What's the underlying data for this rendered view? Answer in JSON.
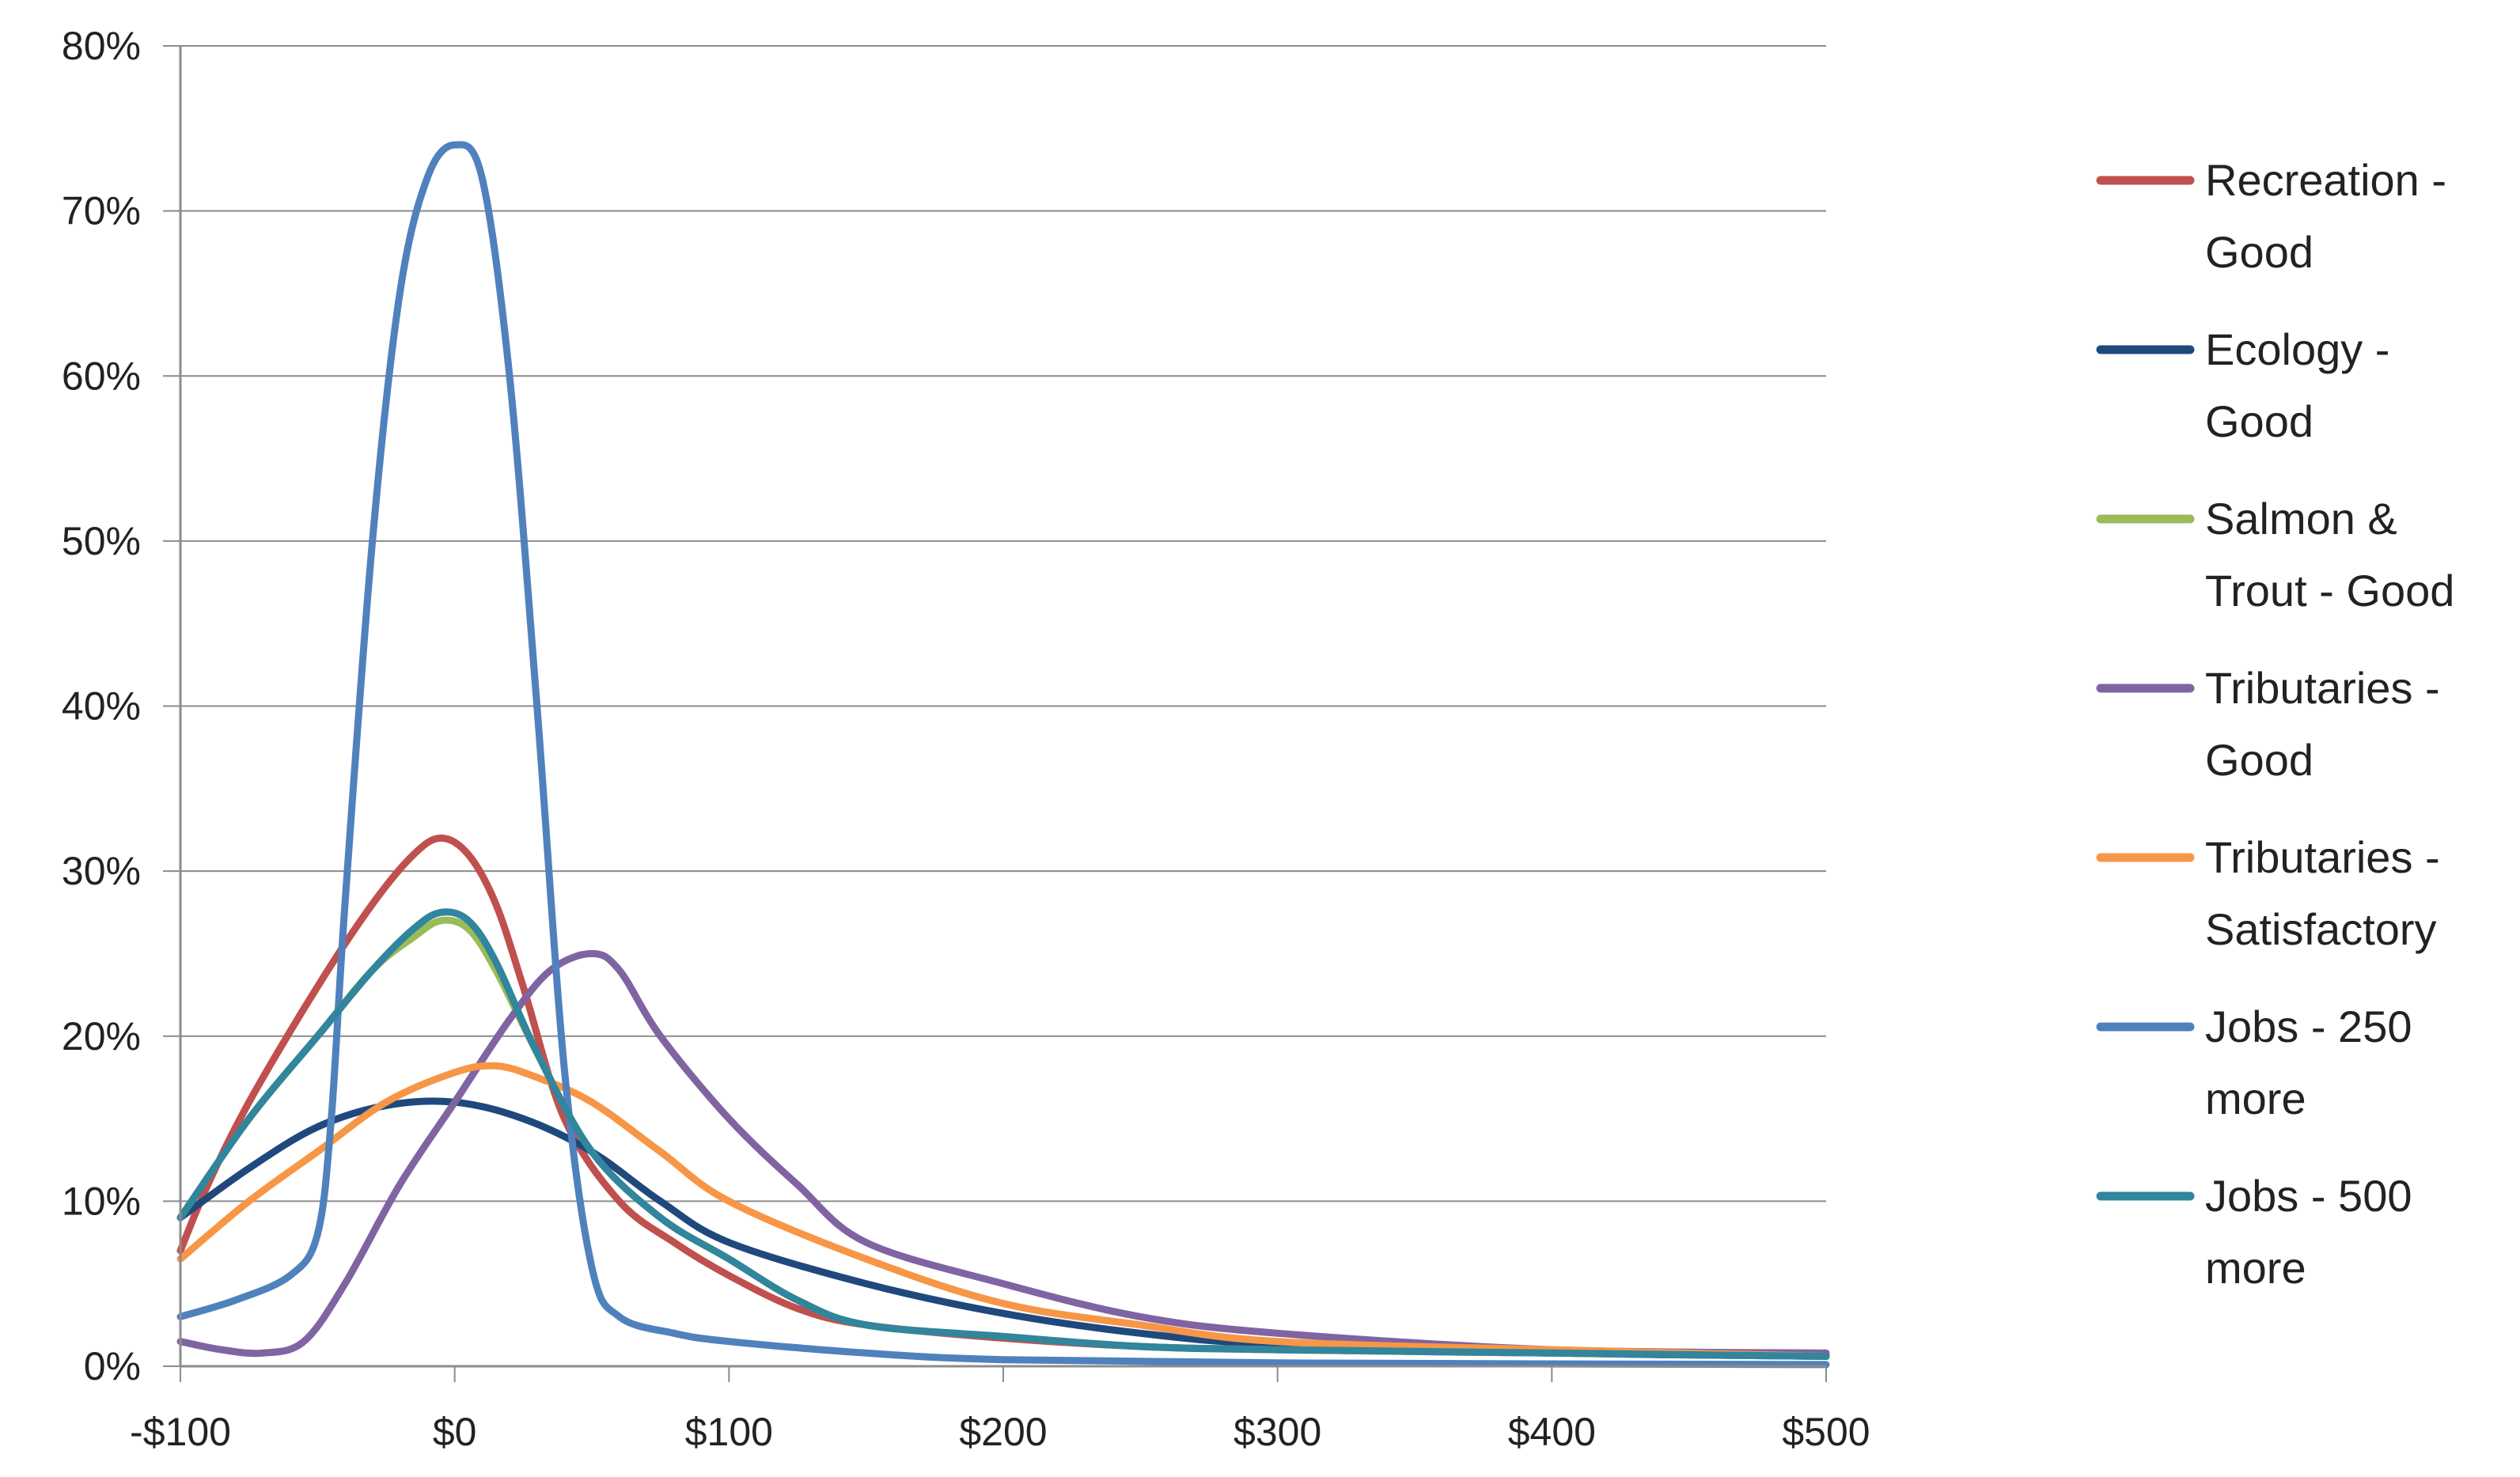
{
  "chart_data": {
    "type": "line",
    "title": "",
    "xlabel": "",
    "ylabel": "",
    "xlim": [
      -100,
      500
    ],
    "ylim": [
      0,
      80
    ],
    "x_ticks": [
      "-$100",
      "$0",
      "$100",
      "$200",
      "$300",
      "$400",
      "$500"
    ],
    "y_ticks": [
      "0%",
      "10%",
      "20%",
      "30%",
      "40%",
      "50%",
      "60%",
      "70%",
      "80%"
    ],
    "grid": "horizontal",
    "legend_position": "right",
    "series": [
      {
        "name": "Recreation - Good",
        "color": "#C0504D",
        "x": [
          -100,
          -90,
          -75,
          -50,
          -30,
          -15,
          -5,
          5,
          15,
          25,
          40,
          60,
          80,
          100,
          125,
          150,
          200,
          250,
          300,
          400,
          500
        ],
        "y": [
          7,
          11,
          16,
          23,
          28,
          31,
          32,
          31,
          28,
          23,
          15,
          10,
          7.5,
          5.5,
          3.5,
          2.5,
          1.7,
          1.2,
          1.0,
          0.8,
          0.7
        ]
      },
      {
        "name": "Ecology - Good",
        "color": "#1F497D",
        "x": [
          -100,
          -75,
          -50,
          -25,
          0,
          25,
          50,
          75,
          100,
          150,
          200,
          250,
          300,
          400,
          500
        ],
        "y": [
          9,
          12,
          14.5,
          15.8,
          16,
          15,
          13,
          10,
          7.5,
          5,
          3.2,
          2.0,
          1.3,
          0.8,
          0.6
        ]
      },
      {
        "name": "Salmon & Trout - Good",
        "color": "#9BBB59",
        "x": [
          -100,
          -75,
          -50,
          -30,
          -15,
          -5,
          5,
          15,
          30,
          50,
          75,
          100,
          125,
          150,
          200,
          250,
          300,
          400,
          500
        ],
        "y": [
          9,
          15,
          20,
          24,
          26,
          27,
          26.5,
          24,
          19,
          13,
          9,
          6.5,
          4,
          2.5,
          1.8,
          1.2,
          1.0,
          0.8,
          0.6
        ]
      },
      {
        "name": "Tributaries - Good",
        "color": "#8064A2",
        "x": [
          -100,
          -85,
          -70,
          -55,
          -40,
          -20,
          0,
          20,
          35,
          50,
          60,
          75,
          100,
          125,
          150,
          200,
          250,
          300,
          400,
          500
        ],
        "y": [
          1.5,
          1.0,
          0.8,
          1.5,
          5,
          11,
          16,
          21,
          24,
          25,
          24,
          20,
          15,
          11,
          7.5,
          5,
          3,
          2,
          1.0,
          0.8
        ]
      },
      {
        "name": "Tributaries - Satisfactory",
        "color": "#F79646",
        "x": [
          -100,
          -75,
          -50,
          -25,
          0,
          15,
          30,
          50,
          75,
          100,
          150,
          200,
          250,
          300,
          400,
          500
        ],
        "y": [
          6.5,
          10,
          13,
          16,
          17.8,
          18.2,
          17.5,
          16,
          13,
          10,
          6.5,
          3.8,
          2.5,
          1.5,
          1.0,
          0.6
        ]
      },
      {
        "name": "Jobs - 250 more",
        "color": "#4F81BD",
        "x": [
          -100,
          -80,
          -60,
          -50,
          -45,
          -40,
          -30,
          -20,
          -10,
          0,
          10,
          20,
          30,
          40,
          50,
          60,
          80,
          100,
          150,
          200,
          300,
          500
        ],
        "y": [
          3,
          4,
          5.5,
          8,
          15,
          28,
          50,
          65,
          72,
          74,
          72,
          60,
          40,
          18,
          6,
          3,
          2,
          1.5,
          0.8,
          0.4,
          0.2,
          0.1
        ]
      },
      {
        "name": "Jobs - 500 more",
        "color": "#31859C",
        "x": [
          -100,
          -75,
          -50,
          -30,
          -15,
          -5,
          5,
          15,
          30,
          50,
          75,
          100,
          125,
          150,
          200,
          250,
          300,
          400,
          500
        ],
        "y": [
          9,
          15,
          20,
          24,
          26.5,
          27.5,
          27,
          24.5,
          19,
          13,
          9,
          6.5,
          4,
          2.5,
          1.8,
          1.2,
          1.0,
          0.8,
          0.6
        ]
      }
    ]
  }
}
